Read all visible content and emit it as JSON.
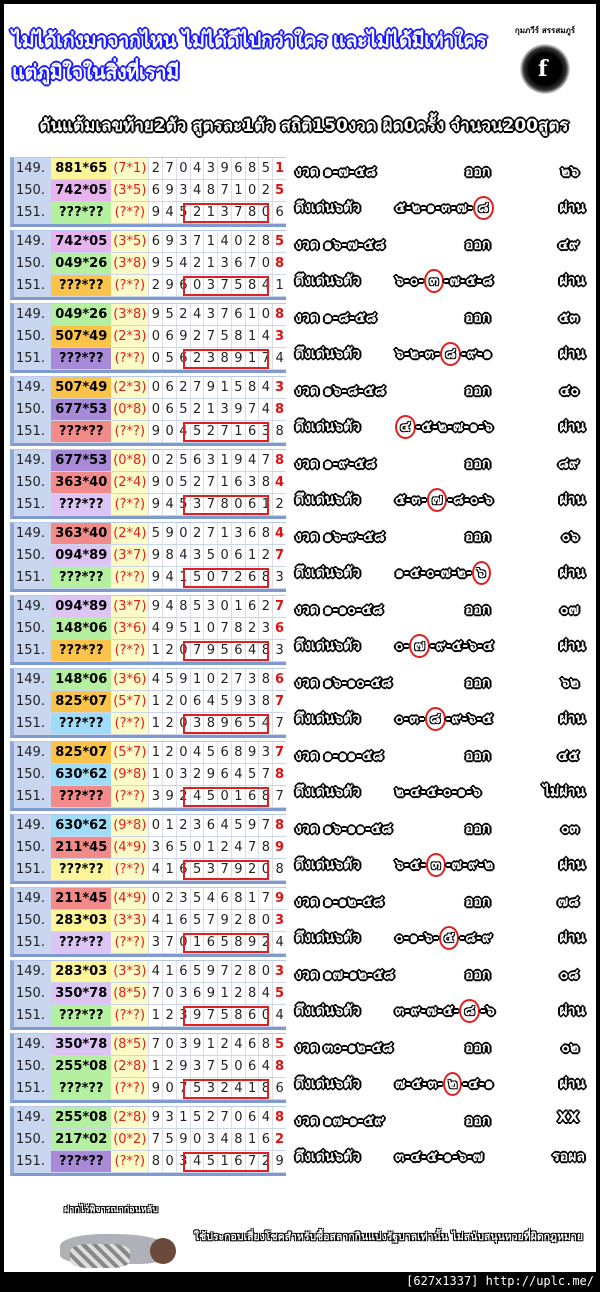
{
  "header": {
    "headline": "ไม่ได้เก่งมาจากไหน ไม่ได้ดีไปกว่าใคร และไม่ได้มีเท่าใคร แต่ภูมิใจในสิ่งที่เรามี",
    "logo_name": "กุมภวีร์ สรรสมภูร์",
    "logo_glyph": "f",
    "subtitle": "ดันแต้มเลขท้าย2ตัว สูตรละ1ตัว สถิติ150งวด ผิด0ครั้ง จำนวน200สูตร"
  },
  "colors": {
    "yellow": "#fdf59a",
    "pink": "#e8b4f0",
    "green": "#b4f0a0",
    "orange": "#fbc34a",
    "violet": "#a88ad8",
    "salmon": "#f28a8a",
    "cyan": "#a0dcf8",
    "lilac": "#dcc4f4",
    "accent_red": "#e02020",
    "index_blue": "#c9d6f0"
  },
  "blocks": [
    {
      "rows": [
        {
          "idx": "149.",
          "formula": "881*65",
          "color": "yellow",
          "pair": "(7*1)",
          "digits": [
            "2",
            "7",
            "0",
            "4",
            "3",
            "9",
            "6",
            "8",
            "5",
            "1"
          ]
        },
        {
          "idx": "150.",
          "formula": "742*05",
          "color": "pink",
          "pair": "(3*5)",
          "digits": [
            "6",
            "9",
            "3",
            "4",
            "8",
            "7",
            "1",
            "0",
            "2",
            "5"
          ]
        },
        {
          "idx": "151.",
          "formula": "???*??",
          "color": "green",
          "pair": "(?*?)",
          "digits": [
            "9",
            "4",
            "5",
            "2",
            "1",
            "3",
            "7",
            "8",
            "0",
            "6"
          ]
        }
      ],
      "highlight_start": 2,
      "draw": "งวด ๑-๗-๕๘",
      "out_label": "ออก",
      "result": "๒๖",
      "pick_label": "ดึงเด่น๖ตัว",
      "seq": [
        "๕",
        "๒",
        "๑",
        "๓",
        "๗",
        "๘"
      ],
      "circled": 5,
      "status": "ผ่าน"
    },
    {
      "rows": [
        {
          "idx": "149.",
          "formula": "742*05",
          "color": "pink",
          "pair": "(3*5)",
          "digits": [
            "6",
            "9",
            "3",
            "7",
            "1",
            "4",
            "0",
            "2",
            "8",
            "5"
          ]
        },
        {
          "idx": "150.",
          "formula": "049*26",
          "color": "green",
          "pair": "(3*8)",
          "digits": [
            "9",
            "5",
            "4",
            "2",
            "1",
            "3",
            "6",
            "7",
            "0",
            "8"
          ]
        },
        {
          "idx": "151.",
          "formula": "???*??",
          "color": "orange",
          "pair": "(?*?)",
          "digits": [
            "2",
            "9",
            "6",
            "0",
            "3",
            "7",
            "5",
            "8",
            "4",
            "1"
          ]
        }
      ],
      "highlight_start": 2,
      "draw": "งวด ๑๖-๗-๕๘",
      "out_label": "ออก",
      "result": "๔๙",
      "pick_label": "ดึงเด่น๖ตัว",
      "seq": [
        "๖",
        "๐",
        "๓",
        "๗",
        "๕",
        "๘"
      ],
      "circled": 2,
      "status": "ผ่าน"
    },
    {
      "rows": [
        {
          "idx": "149.",
          "formula": "049*26",
          "color": "green",
          "pair": "(3*8)",
          "digits": [
            "9",
            "5",
            "2",
            "4",
            "3",
            "7",
            "6",
            "1",
            "0",
            "8"
          ]
        },
        {
          "idx": "150.",
          "formula": "507*49",
          "color": "orange",
          "pair": "(2*3)",
          "digits": [
            "0",
            "6",
            "9",
            "2",
            "7",
            "5",
            "8",
            "1",
            "4",
            "3"
          ]
        },
        {
          "idx": "151.",
          "formula": "???*??",
          "color": "violet",
          "pair": "(?*?)",
          "digits": [
            "0",
            "5",
            "6",
            "2",
            "3",
            "8",
            "9",
            "1",
            "7",
            "4"
          ]
        }
      ],
      "highlight_start": 2,
      "draw": "งวด ๑-๘-๕๘",
      "out_label": "ออก",
      "result": "๕๓",
      "pick_label": "ดึงเด่น๖ตัว",
      "seq": [
        "๖",
        "๒",
        "๓",
        "๘",
        "๙",
        "๑"
      ],
      "circled": 3,
      "status": "ผ่าน"
    },
    {
      "rows": [
        {
          "idx": "149.",
          "formula": "507*49",
          "color": "orange",
          "pair": "(2*3)",
          "digits": [
            "0",
            "6",
            "2",
            "7",
            "9",
            "1",
            "5",
            "8",
            "4",
            "3"
          ]
        },
        {
          "idx": "150.",
          "formula": "677*53",
          "color": "violet",
          "pair": "(0*8)",
          "digits": [
            "0",
            "6",
            "5",
            "2",
            "1",
            "3",
            "9",
            "7",
            "4",
            "8"
          ]
        },
        {
          "idx": "151.",
          "formula": "???*??",
          "color": "salmon",
          "pair": "(?*?)",
          "digits": [
            "9",
            "0",
            "4",
            "5",
            "2",
            "7",
            "1",
            "6",
            "3",
            "8"
          ]
        }
      ],
      "highlight_start": 2,
      "draw": "งวด ๑๖-๘-๕๘",
      "out_label": "ออก",
      "result": "๔๐",
      "pick_label": "ดึงเด่น๖ตัว",
      "seq": [
        "๔",
        "๕",
        "๒",
        "๗",
        "๑",
        "๖"
      ],
      "circled": 0,
      "status": "ผ่าน"
    },
    {
      "rows": [
        {
          "idx": "149.",
          "formula": "677*53",
          "color": "violet",
          "pair": "(0*8)",
          "digits": [
            "0",
            "2",
            "5",
            "6",
            "3",
            "1",
            "9",
            "4",
            "7",
            "8"
          ]
        },
        {
          "idx": "150.",
          "formula": "363*40",
          "color": "salmon",
          "pair": "(2*4)",
          "digits": [
            "9",
            "0",
            "5",
            "2",
            "7",
            "1",
            "6",
            "3",
            "8",
            "4"
          ]
        },
        {
          "idx": "151.",
          "formula": "???*??",
          "color": "lilac",
          "pair": "(?*?)",
          "digits": [
            "9",
            "4",
            "5",
            "3",
            "7",
            "8",
            "0",
            "6",
            "1",
            "2"
          ]
        }
      ],
      "highlight_start": 2,
      "draw": "งวด ๑-๙-๕๘",
      "out_label": "ออก",
      "result": "๘๙",
      "pick_label": "ดึงเด่น๖ตัว",
      "seq": [
        "๕",
        "๓",
        "๗",
        "๘",
        "๐",
        "๖"
      ],
      "circled": 2,
      "status": "ผ่าน"
    },
    {
      "rows": [
        {
          "idx": "149.",
          "formula": "363*40",
          "color": "salmon",
          "pair": "(2*4)",
          "digits": [
            "5",
            "9",
            "0",
            "2",
            "7",
            "1",
            "3",
            "6",
            "8",
            "4"
          ]
        },
        {
          "idx": "150.",
          "formula": "094*89",
          "color": "lilac",
          "pair": "(3*7)",
          "digits": [
            "9",
            "8",
            "4",
            "3",
            "5",
            "0",
            "6",
            "1",
            "2",
            "7"
          ]
        },
        {
          "idx": "151.",
          "formula": "???*??",
          "color": "green",
          "pair": "(?*?)",
          "digits": [
            "9",
            "4",
            "1",
            "5",
            "0",
            "7",
            "2",
            "6",
            "8",
            "3"
          ]
        }
      ],
      "highlight_start": 2,
      "draw": "งวด ๑๖-๙-๕๘",
      "out_label": "ออก",
      "result": "๐๖",
      "pick_label": "ดึงเด่น๖ตัว",
      "seq": [
        "๑",
        "๕",
        "๐",
        "๗",
        "๒",
        "๖"
      ],
      "circled": 5,
      "status": "ผ่าน"
    },
    {
      "rows": [
        {
          "idx": "149.",
          "formula": "094*89",
          "color": "lilac",
          "pair": "(3*7)",
          "digits": [
            "9",
            "4",
            "8",
            "5",
            "3",
            "0",
            "1",
            "6",
            "2",
            "7"
          ]
        },
        {
          "idx": "150.",
          "formula": "148*06",
          "color": "green",
          "pair": "(3*6)",
          "digits": [
            "4",
            "9",
            "5",
            "1",
            "0",
            "7",
            "8",
            "2",
            "3",
            "6"
          ]
        },
        {
          "idx": "151.",
          "formula": "???*??",
          "color": "orange",
          "pair": "(?*?)",
          "digits": [
            "1",
            "2",
            "0",
            "7",
            "9",
            "5",
            "6",
            "4",
            "8",
            "3"
          ]
        }
      ],
      "highlight_start": 2,
      "draw": "งวด ๑-๑๐-๕๘",
      "out_label": "ออก",
      "result": "๐๗",
      "pick_label": "ดึงเด่น๖ตัว",
      "seq": [
        "๐",
        "๗",
        "๙",
        "๕",
        "๖",
        "๔"
      ],
      "circled": 1,
      "status": "ผ่าน"
    },
    {
      "rows": [
        {
          "idx": "149.",
          "formula": "148*06",
          "color": "green",
          "pair": "(3*6)",
          "digits": [
            "4",
            "5",
            "9",
            "1",
            "0",
            "2",
            "7",
            "3",
            "8",
            "6"
          ]
        },
        {
          "idx": "150.",
          "formula": "825*07",
          "color": "orange",
          "pair": "(5*7)",
          "digits": [
            "1",
            "2",
            "0",
            "6",
            "4",
            "5",
            "9",
            "3",
            "8",
            "7"
          ]
        },
        {
          "idx": "151.",
          "formula": "???*??",
          "color": "cyan",
          "pair": "(?*?)",
          "digits": [
            "1",
            "2",
            "0",
            "3",
            "8",
            "9",
            "6",
            "5",
            "4",
            "7"
          ]
        }
      ],
      "highlight_start": 2,
      "draw": "งวด ๑๖-๑๐-๕๘",
      "out_label": "ออก",
      "result": "๖๒",
      "pick_label": "ดึงเด่น๖ตัว",
      "seq": [
        "๐",
        "๓",
        "๘",
        "๙",
        "๖",
        "๕"
      ],
      "circled": 2,
      "status": "ผ่าน"
    },
    {
      "rows": [
        {
          "idx": "149.",
          "formula": "825*07",
          "color": "orange",
          "pair": "(5*7)",
          "digits": [
            "1",
            "2",
            "0",
            "4",
            "5",
            "6",
            "8",
            "9",
            "3",
            "7"
          ]
        },
        {
          "idx": "150.",
          "formula": "630*62",
          "color": "cyan",
          "pair": "(9*8)",
          "digits": [
            "1",
            "0",
            "3",
            "2",
            "9",
            "6",
            "4",
            "5",
            "7",
            "8"
          ]
        },
        {
          "idx": "151.",
          "formula": "???*??",
          "color": "salmon",
          "pair": "(?*?)",
          "digits": [
            "3",
            "9",
            "2",
            "4",
            "5",
            "0",
            "1",
            "6",
            "8",
            "7"
          ]
        }
      ],
      "highlight_start": 2,
      "draw": "งวด ๑-๑๑-๕๘",
      "out_label": "ออก",
      "result": "๔๕",
      "pick_label": "ดึงเด่น๖ตัว",
      "seq": [
        "๒",
        "๔",
        "๕",
        "๐",
        "๑",
        "๖"
      ],
      "circled": -1,
      "status": "ไม่ผ่าน"
    },
    {
      "rows": [
        {
          "idx": "149.",
          "formula": "630*62",
          "color": "cyan",
          "pair": "(9*8)",
          "digits": [
            "0",
            "1",
            "2",
            "3",
            "6",
            "4",
            "5",
            "9",
            "7",
            "8"
          ]
        },
        {
          "idx": "150.",
          "formula": "211*45",
          "color": "salmon",
          "pair": "(4*9)",
          "digits": [
            "3",
            "6",
            "5",
            "0",
            "1",
            "2",
            "4",
            "7",
            "8",
            "9"
          ]
        },
        {
          "idx": "151.",
          "formula": "???*??",
          "color": "yellow",
          "pair": "(?*?)",
          "digits": [
            "4",
            "1",
            "6",
            "5",
            "3",
            "7",
            "9",
            "2",
            "0",
            "8"
          ]
        }
      ],
      "highlight_start": 2,
      "draw": "งวด ๑๖-๑๑-๕๘",
      "out_label": "ออก",
      "result": "๐๓",
      "pick_label": "ดึงเด่น๖ตัว",
      "seq": [
        "๖",
        "๕",
        "๓",
        "๗",
        "๙",
        "๒"
      ],
      "circled": 2,
      "status": "ผ่าน"
    },
    {
      "rows": [
        {
          "idx": "149.",
          "formula": "211*45",
          "color": "salmon",
          "pair": "(4*9)",
          "digits": [
            "0",
            "2",
            "3",
            "5",
            "4",
            "6",
            "8",
            "1",
            "7",
            "9"
          ]
        },
        {
          "idx": "150.",
          "formula": "283*03",
          "color": "yellow",
          "pair": "(3*3)",
          "digits": [
            "4",
            "1",
            "6",
            "5",
            "7",
            "9",
            "2",
            "8",
            "0",
            "3"
          ]
        },
        {
          "idx": "151.",
          "formula": "???*??",
          "color": "lilac",
          "pair": "(?*?)",
          "digits": [
            "3",
            "7",
            "0",
            "1",
            "6",
            "5",
            "8",
            "9",
            "2",
            "4"
          ]
        }
      ],
      "highlight_start": 2,
      "draw": "งวด ๑-๑๒-๕๘",
      "out_label": "ออก",
      "result": "๗๘",
      "pick_label": "ดึงเด่น๖ตัว",
      "seq": [
        "๐",
        "๑",
        "๖",
        "๕",
        "๘",
        "๙"
      ],
      "circled": 3,
      "status": "ผ่าน"
    },
    {
      "rows": [
        {
          "idx": "149.",
          "formula": "283*03",
          "color": "yellow",
          "pair": "(3*3)",
          "digits": [
            "4",
            "1",
            "6",
            "5",
            "9",
            "7",
            "2",
            "8",
            "0",
            "3"
          ]
        },
        {
          "idx": "150.",
          "formula": "350*78",
          "color": "lilac",
          "pair": "(8*5)",
          "digits": [
            "7",
            "0",
            "3",
            "6",
            "9",
            "1",
            "2",
            "8",
            "4",
            "5"
          ]
        },
        {
          "idx": "151.",
          "formula": "???*??",
          "color": "green",
          "pair": "(?*?)",
          "digits": [
            "1",
            "2",
            "3",
            "9",
            "7",
            "5",
            "8",
            "6",
            "0",
            "4"
          ]
        }
      ],
      "highlight_start": 2,
      "draw": "งวด ๑๗-๑๒-๕๘",
      "out_label": "ออก",
      "result": "๐๘",
      "pick_label": "ดึงเด่น๖ตัว",
      "seq": [
        "๓",
        "๙",
        "๗",
        "๕",
        "๘",
        "๖"
      ],
      "circled": 4,
      "status": "ผ่าน"
    },
    {
      "rows": [
        {
          "idx": "149.",
          "formula": "350*78",
          "color": "lilac",
          "pair": "(8*5)",
          "digits": [
            "7",
            "0",
            "3",
            "9",
            "1",
            "2",
            "4",
            "6",
            "8",
            "5"
          ]
        },
        {
          "idx": "150.",
          "formula": "255*08",
          "color": "green",
          "pair": "(2*8)",
          "digits": [
            "1",
            "2",
            "9",
            "3",
            "7",
            "5",
            "0",
            "6",
            "4",
            "8"
          ]
        },
        {
          "idx": "151.",
          "formula": "???*??",
          "color": "green",
          "pair": "(?*?)",
          "digits": [
            "9",
            "0",
            "7",
            "5",
            "3",
            "2",
            "4",
            "1",
            "8",
            "6"
          ]
        }
      ],
      "highlight_start": 2,
      "draw": "งวด ๓๐-๑๒-๕๘",
      "out_label": "ออก",
      "result": "๐๒",
      "pick_label": "ดึงเด่น๖ตัว",
      "seq": [
        "๗",
        "๕",
        "๓",
        "๒",
        "๔",
        "๑"
      ],
      "circled": 3,
      "status": "ผ่าน"
    },
    {
      "rows": [
        {
          "idx": "149.",
          "formula": "255*08",
          "color": "green",
          "pair": "(2*8)",
          "digits": [
            "9",
            "3",
            "1",
            "5",
            "2",
            "7",
            "0",
            "6",
            "4",
            "8"
          ]
        },
        {
          "idx": "150.",
          "formula": "217*02",
          "color": "green",
          "pair": "(0*2)",
          "digits": [
            "7",
            "5",
            "9",
            "0",
            "3",
            "4",
            "8",
            "1",
            "6",
            "2"
          ]
        },
        {
          "idx": "151.",
          "formula": "???*??",
          "color": "violet",
          "pair": "(?*?)",
          "digits": [
            "8",
            "0",
            "3",
            "4",
            "5",
            "1",
            "6",
            "7",
            "2",
            "9"
          ]
        }
      ],
      "highlight_start": 2,
      "draw": "งวด ๑๗-๑-๕๙",
      "out_label": "ออก",
      "result": "XX",
      "pick_label": "ดึงเด่น๖ตัว",
      "seq": [
        "๓",
        "๔",
        "๕",
        "๑",
        "๖",
        "๗"
      ],
      "circled": -1,
      "status": "รอผล"
    }
  ],
  "footer": {
    "caption": "ฝากไว้พิจารณาก่อนหลับ",
    "disclaimer": "ใช้ประกอบเสี่ยงโชคสำหรับซื้อสลากกินแบ่งรัฐบาลเท่านั้น ไม่สนับสนุนหวยที่ผิดกฎหมาย",
    "watermark": "[627x1337] http://uplc.me/"
  }
}
